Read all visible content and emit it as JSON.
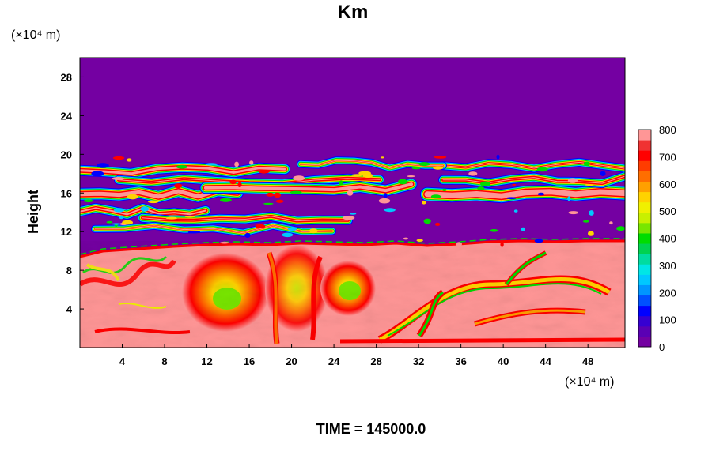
{
  "chart_data": {
    "type": "heatmap",
    "title": "Km",
    "ylabel": "Height",
    "xlabel": "",
    "y_unit_label": "(×10⁴ m)",
    "x_unit_label": "(×10⁴ m)",
    "footer": "TIME = 145000.0",
    "xlim": [
      0,
      51.5
    ],
    "ylim": [
      0,
      30
    ],
    "x_ticks": [
      4,
      8,
      12,
      16,
      20,
      24,
      28,
      32,
      36,
      40,
      44,
      48
    ],
    "y_ticks": [
      4,
      8,
      12,
      16,
      20,
      24,
      28
    ],
    "colorbar": {
      "range": [
        0,
        800
      ],
      "ticks": [
        0,
        100,
        200,
        300,
        400,
        500,
        600,
        700,
        800
      ],
      "colors": [
        "#7400a2",
        "#5a00b4",
        "#3600d2",
        "#0000ff",
        "#0050ff",
        "#0096ff",
        "#00c8ff",
        "#00e6e6",
        "#00dca0",
        "#00d250",
        "#00dc00",
        "#78e600",
        "#c8f000",
        "#f0f000",
        "#ffd200",
        "#ffa000",
        "#ff6e00",
        "#ff3c00",
        "#ff0000",
        "#f03232",
        "#ff9696"
      ]
    },
    "features": {
      "upper_layer_top": 19.8,
      "lower_layer_top": 10.5,
      "eddies": [
        {
          "x": 14.5,
          "y": 5.0,
          "value": 450
        },
        {
          "x": 27.0,
          "y": 6.0,
          "value": 420
        },
        {
          "x": 20.0,
          "y": 7.0,
          "value": 650
        }
      ]
    }
  }
}
